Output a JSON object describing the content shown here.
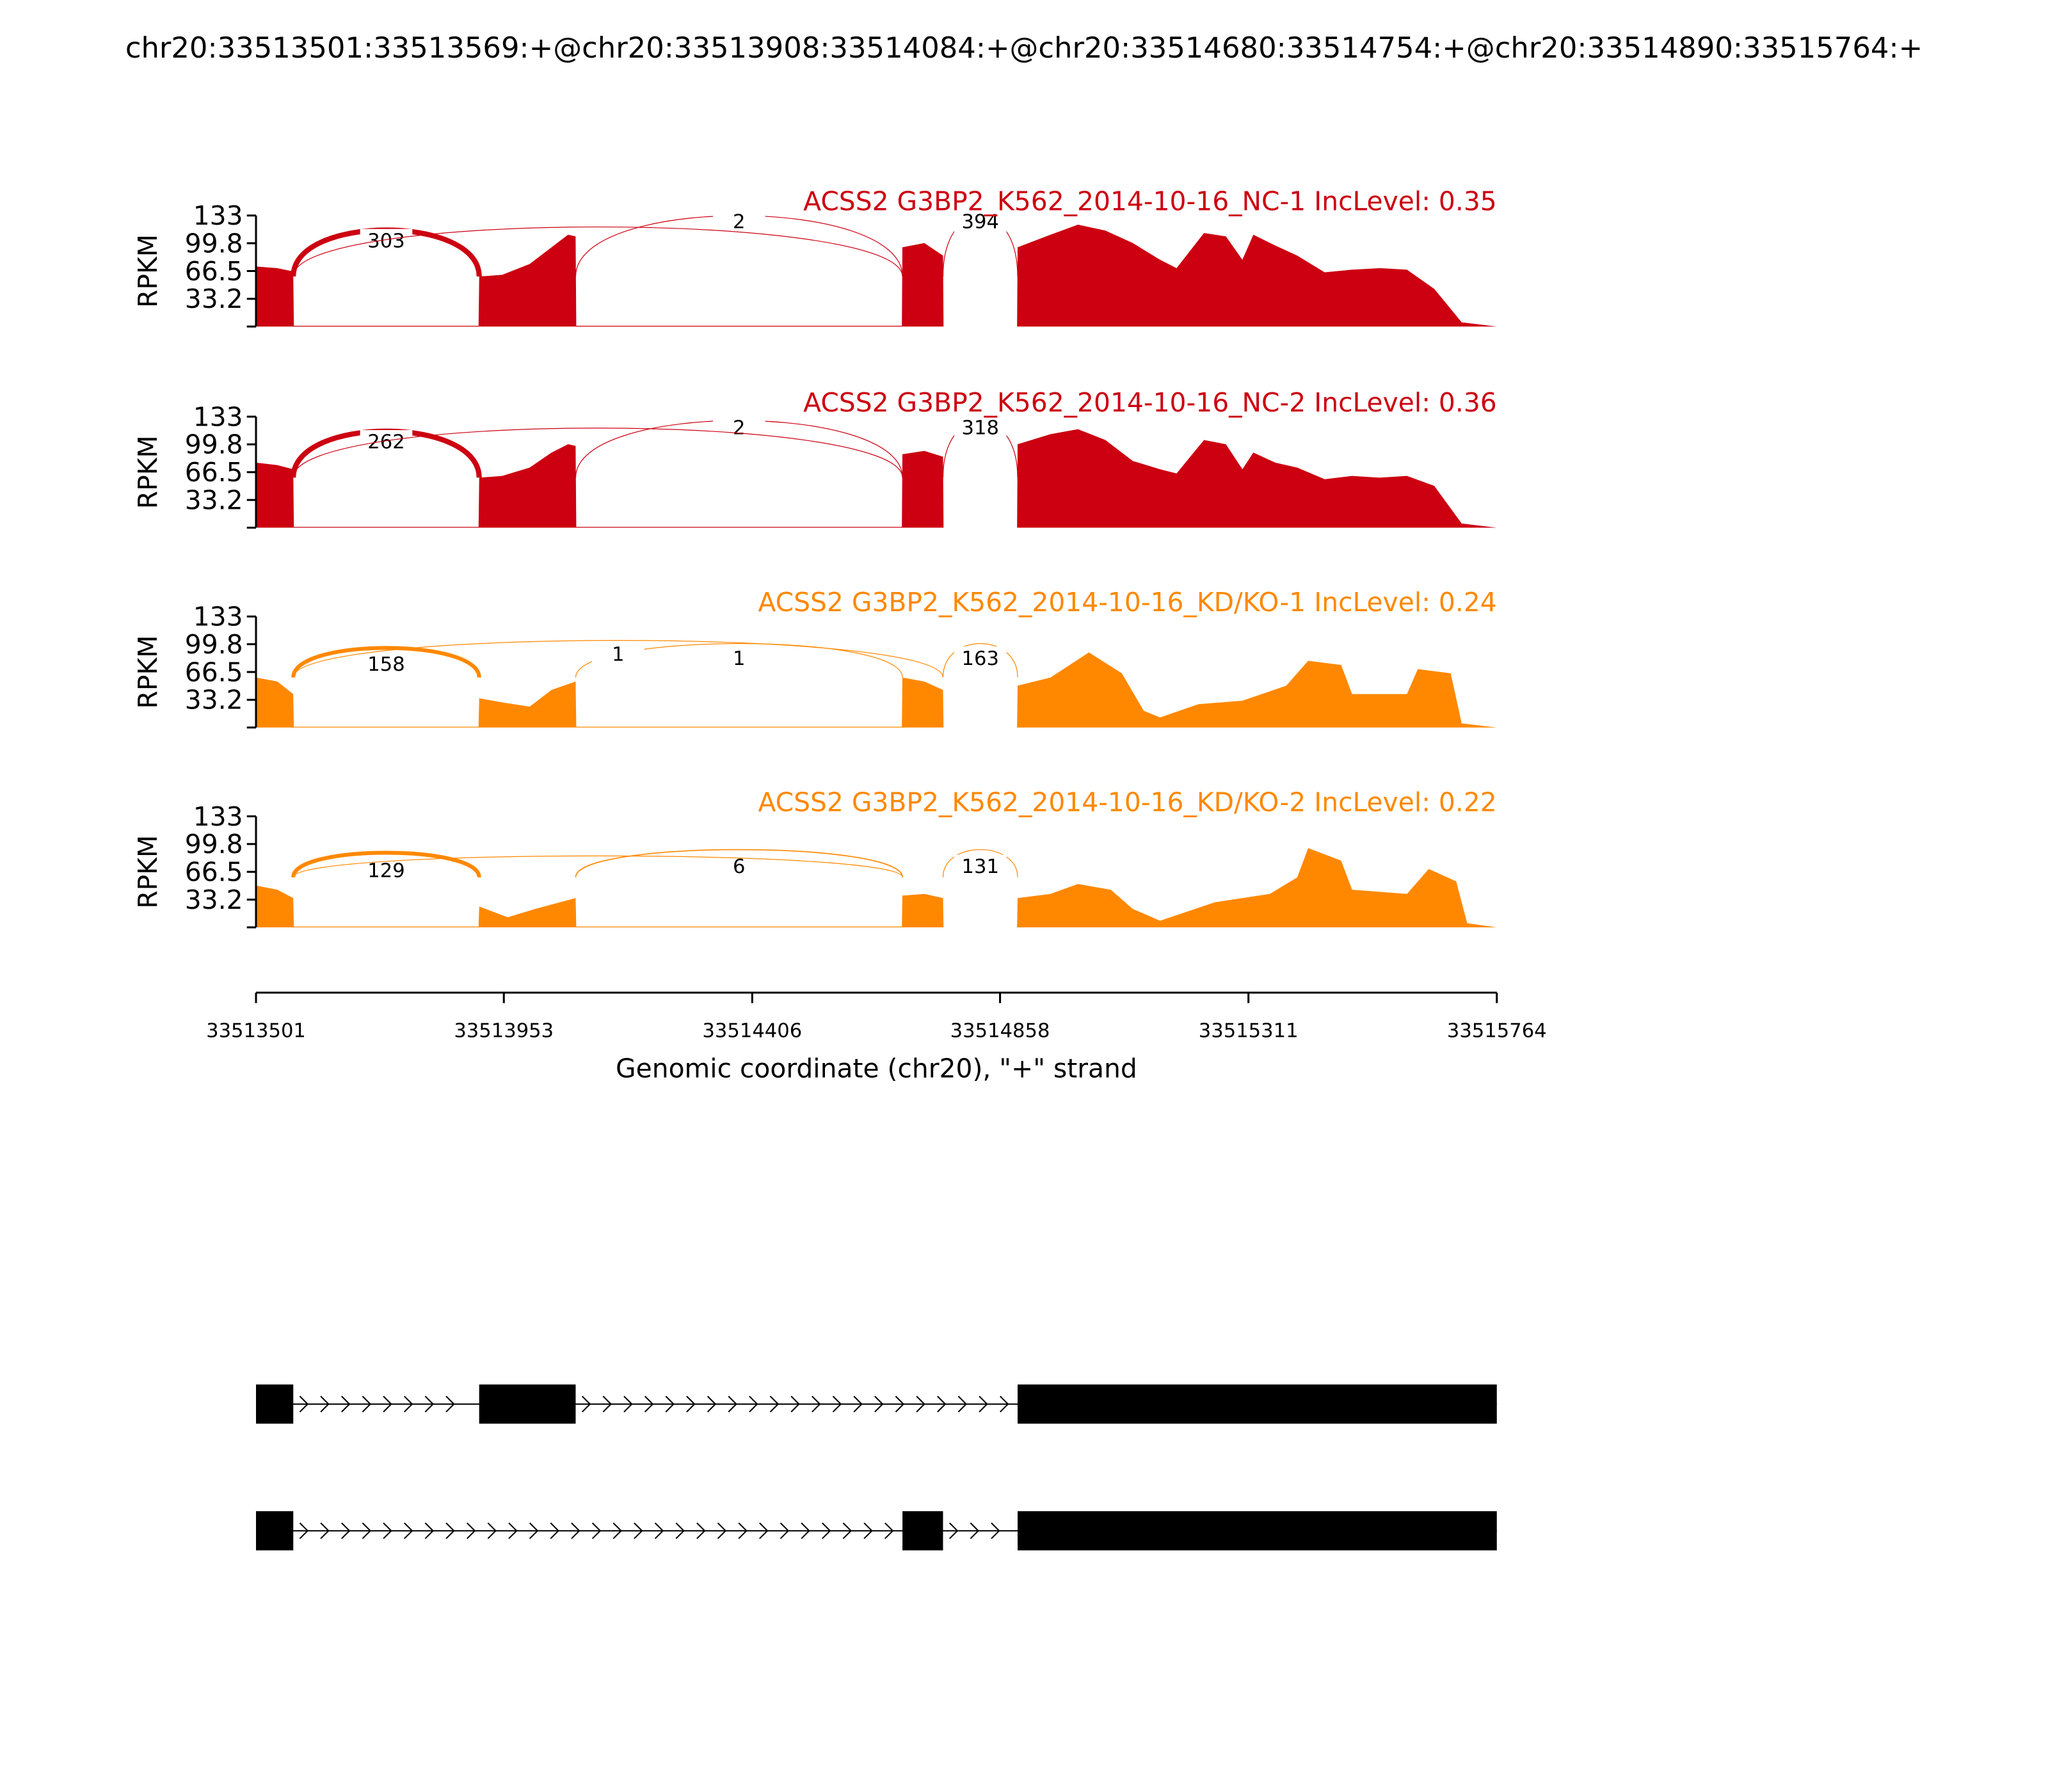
{
  "chart_data": {
    "type": "area",
    "title": "chr20:33513501:33513569:+@chr20:33513908:33514084:+@chr20:33514680:33514754:+@chr20:33514890:33515764:+",
    "xlabel": "Genomic coordinate (chr20), \"+\" strand",
    "ylabel": "RPKM",
    "xlim": [
      33513501,
      33515764
    ],
    "ylim": [
      0,
      133
    ],
    "xticks": [
      "33513501",
      "33513953",
      "33514406",
      "33514858",
      "33515311",
      "33515764"
    ],
    "yticks": [
      "133",
      "99.8",
      "66.5",
      "33.2"
    ],
    "exons": [
      [
        33513501,
        33513569
      ],
      [
        33513908,
        33514084
      ],
      [
        33514680,
        33514754
      ],
      [
        33514890,
        33515764
      ]
    ],
    "transcripts": [
      {
        "exons": [
          [
            33513501,
            33513569
          ],
          [
            33513908,
            33514084
          ],
          [
            33514890,
            33515764
          ]
        ]
      },
      {
        "exons": [
          [
            33513501,
            33513569
          ],
          [
            33514680,
            33514754
          ],
          [
            33514890,
            33515764
          ]
        ]
      }
    ],
    "series": [
      {
        "name": "ACSS2 G3BP2_K562_2014-10-16_NC-1 IncLevel: 0.35",
        "color": "#cc0011",
        "junctions": [
          {
            "from": 33513569,
            "to": 33513908,
            "count": "303",
            "h": 95,
            "w": 4
          },
          {
            "from": 33514084,
            "to": 33514680,
            "count": "2",
            "h": 118,
            "w": 0.6
          },
          {
            "from": 33514754,
            "to": 33514890,
            "count": "394",
            "h": 118,
            "w": 0.6
          },
          {
            "from": 33513569,
            "to": 33514680,
            "count": "",
            "h": 100,
            "w": 0.6
          }
        ],
        "coverage": [
          [
            33513501,
            72
          ],
          [
            33513540,
            70
          ],
          [
            33513569,
            66
          ],
          [
            33513570,
            1
          ],
          [
            33513907,
            1
          ],
          [
            33513908,
            60
          ],
          [
            33513950,
            62
          ],
          [
            33514000,
            75
          ],
          [
            33514040,
            95
          ],
          [
            33514070,
            110
          ],
          [
            33514084,
            108
          ],
          [
            33514085,
            1
          ],
          [
            33514679,
            1
          ],
          [
            33514680,
            95
          ],
          [
            33514720,
            100
          ],
          [
            33514754,
            85
          ],
          [
            33514755,
            0
          ],
          [
            33514889,
            0
          ],
          [
            33514890,
            95
          ],
          [
            33514950,
            110
          ],
          [
            33515000,
            122
          ],
          [
            33515050,
            115
          ],
          [
            33515100,
            100
          ],
          [
            33515150,
            80
          ],
          [
            33515180,
            70
          ],
          [
            33515230,
            112
          ],
          [
            33515270,
            108
          ],
          [
            33515300,
            80
          ],
          [
            33515320,
            110
          ],
          [
            33515360,
            97
          ],
          [
            33515400,
            85
          ],
          [
            33515450,
            65
          ],
          [
            33515500,
            68
          ],
          [
            33515550,
            70
          ],
          [
            33515600,
            68
          ],
          [
            33515650,
            45
          ],
          [
            33515700,
            5
          ],
          [
            33515764,
            0
          ]
        ]
      },
      {
        "name": "ACSS2 G3BP2_K562_2014-10-16_NC-2 IncLevel: 0.36",
        "color": "#cc0011",
        "junctions": [
          {
            "from": 33513569,
            "to": 33513908,
            "count": "262",
            "h": 95,
            "w": 4
          },
          {
            "from": 33514084,
            "to": 33514680,
            "count": "2",
            "h": 112,
            "w": 0.6
          },
          {
            "from": 33514754,
            "to": 33514890,
            "count": "318",
            "h": 112,
            "w": 0.6
          },
          {
            "from": 33513569,
            "to": 33514680,
            "count": "",
            "h": 100,
            "w": 0.6
          }
        ],
        "coverage": [
          [
            33513501,
            78
          ],
          [
            33513540,
            75
          ],
          [
            33513569,
            70
          ],
          [
            33513570,
            1
          ],
          [
            33513907,
            1
          ],
          [
            33513908,
            60
          ],
          [
            33513950,
            62
          ],
          [
            33514000,
            72
          ],
          [
            33514040,
            90
          ],
          [
            33514070,
            100
          ],
          [
            33514084,
            98
          ],
          [
            33514085,
            1
          ],
          [
            33514679,
            1
          ],
          [
            33514680,
            88
          ],
          [
            33514720,
            92
          ],
          [
            33514754,
            85
          ],
          [
            33514755,
            0
          ],
          [
            33514889,
            0
          ],
          [
            33514890,
            100
          ],
          [
            33514950,
            112
          ],
          [
            33515000,
            118
          ],
          [
            33515050,
            105
          ],
          [
            33515100,
            80
          ],
          [
            33515150,
            70
          ],
          [
            33515180,
            65
          ],
          [
            33515230,
            105
          ],
          [
            33515270,
            100
          ],
          [
            33515300,
            70
          ],
          [
            33515320,
            90
          ],
          [
            33515360,
            78
          ],
          [
            33515400,
            72
          ],
          [
            33515450,
            58
          ],
          [
            33515500,
            62
          ],
          [
            33515550,
            60
          ],
          [
            33515600,
            62
          ],
          [
            33515650,
            50
          ],
          [
            33515700,
            5
          ],
          [
            33515764,
            0
          ]
        ]
      },
      {
        "name": "ACSS2 G3BP2_K562_2014-10-16_KD/KO-1 IncLevel: 0.24",
        "color": "#ff8800",
        "junctions": [
          {
            "from": 33513569,
            "to": 33513908,
            "count": "158",
            "h": 68,
            "w": 3
          },
          {
            "from": 33514084,
            "to": 33514680,
            "count": "1",
            "h": 75,
            "w": 0.6
          },
          {
            "from": 33513569,
            "to": 33514754,
            "count": "1",
            "h": 80,
            "w": 0.6
          },
          {
            "from": 33514754,
            "to": 33514890,
            "count": "163",
            "h": 75,
            "w": 0.6
          }
        ],
        "coverage": [
          [
            33513501,
            60
          ],
          [
            33513540,
            55
          ],
          [
            33513569,
            40
          ],
          [
            33513570,
            1
          ],
          [
            33513907,
            1
          ],
          [
            33513908,
            35
          ],
          [
            33513950,
            30
          ],
          [
            33514000,
            25
          ],
          [
            33514040,
            45
          ],
          [
            33514084,
            55
          ],
          [
            33514085,
            1
          ],
          [
            33514679,
            1
          ],
          [
            33514680,
            60
          ],
          [
            33514720,
            55
          ],
          [
            33514754,
            45
          ],
          [
            33514755,
            0
          ],
          [
            33514889,
            0
          ],
          [
            33514890,
            50
          ],
          [
            33514950,
            60
          ],
          [
            33515020,
            90
          ],
          [
            33515080,
            65
          ],
          [
            33515120,
            20
          ],
          [
            33515150,
            12
          ],
          [
            33515220,
            28
          ],
          [
            33515300,
            32
          ],
          [
            33515380,
            50
          ],
          [
            33515420,
            80
          ],
          [
            33515480,
            75
          ],
          [
            33515500,
            40
          ],
          [
            33515600,
            40
          ],
          [
            33515620,
            70
          ],
          [
            33515680,
            65
          ],
          [
            33515700,
            5
          ],
          [
            33515764,
            0
          ]
        ]
      },
      {
        "name": "ACSS2 G3BP2_K562_2014-10-16_KD/KO-2 IncLevel: 0.22",
        "color": "#ff8800",
        "junctions": [
          {
            "from": 33513569,
            "to": 33513908,
            "count": "129",
            "h": 60,
            "w": 3
          },
          {
            "from": 33514084,
            "to": 33514680,
            "count": "6",
            "h": 65,
            "w": 0.8
          },
          {
            "from": 33514754,
            "to": 33514890,
            "count": "131",
            "h": 65,
            "w": 0.6
          },
          {
            "from": 33513569,
            "to": 33514680,
            "count": "",
            "h": 55,
            "w": 0.6
          }
        ],
        "coverage": [
          [
            33513501,
            50
          ],
          [
            33513540,
            45
          ],
          [
            33513569,
            35
          ],
          [
            33513570,
            1
          ],
          [
            33513907,
            1
          ],
          [
            33513908,
            25
          ],
          [
            33513960,
            12
          ],
          [
            33514010,
            22
          ],
          [
            33514084,
            35
          ],
          [
            33514085,
            1
          ],
          [
            33514679,
            1
          ],
          [
            33514680,
            38
          ],
          [
            33514720,
            40
          ],
          [
            33514754,
            35
          ],
          [
            33514755,
            0
          ],
          [
            33514889,
            0
          ],
          [
            33514890,
            35
          ],
          [
            33514950,
            40
          ],
          [
            33515000,
            52
          ],
          [
            33515060,
            45
          ],
          [
            33515100,
            22
          ],
          [
            33515150,
            8
          ],
          [
            33515250,
            30
          ],
          [
            33515350,
            40
          ],
          [
            33515400,
            60
          ],
          [
            33515420,
            95
          ],
          [
            33515480,
            80
          ],
          [
            33515500,
            45
          ],
          [
            33515600,
            40
          ],
          [
            33515640,
            70
          ],
          [
            33515690,
            55
          ],
          [
            33515710,
            5
          ],
          [
            33515764,
            0
          ]
        ]
      }
    ]
  }
}
